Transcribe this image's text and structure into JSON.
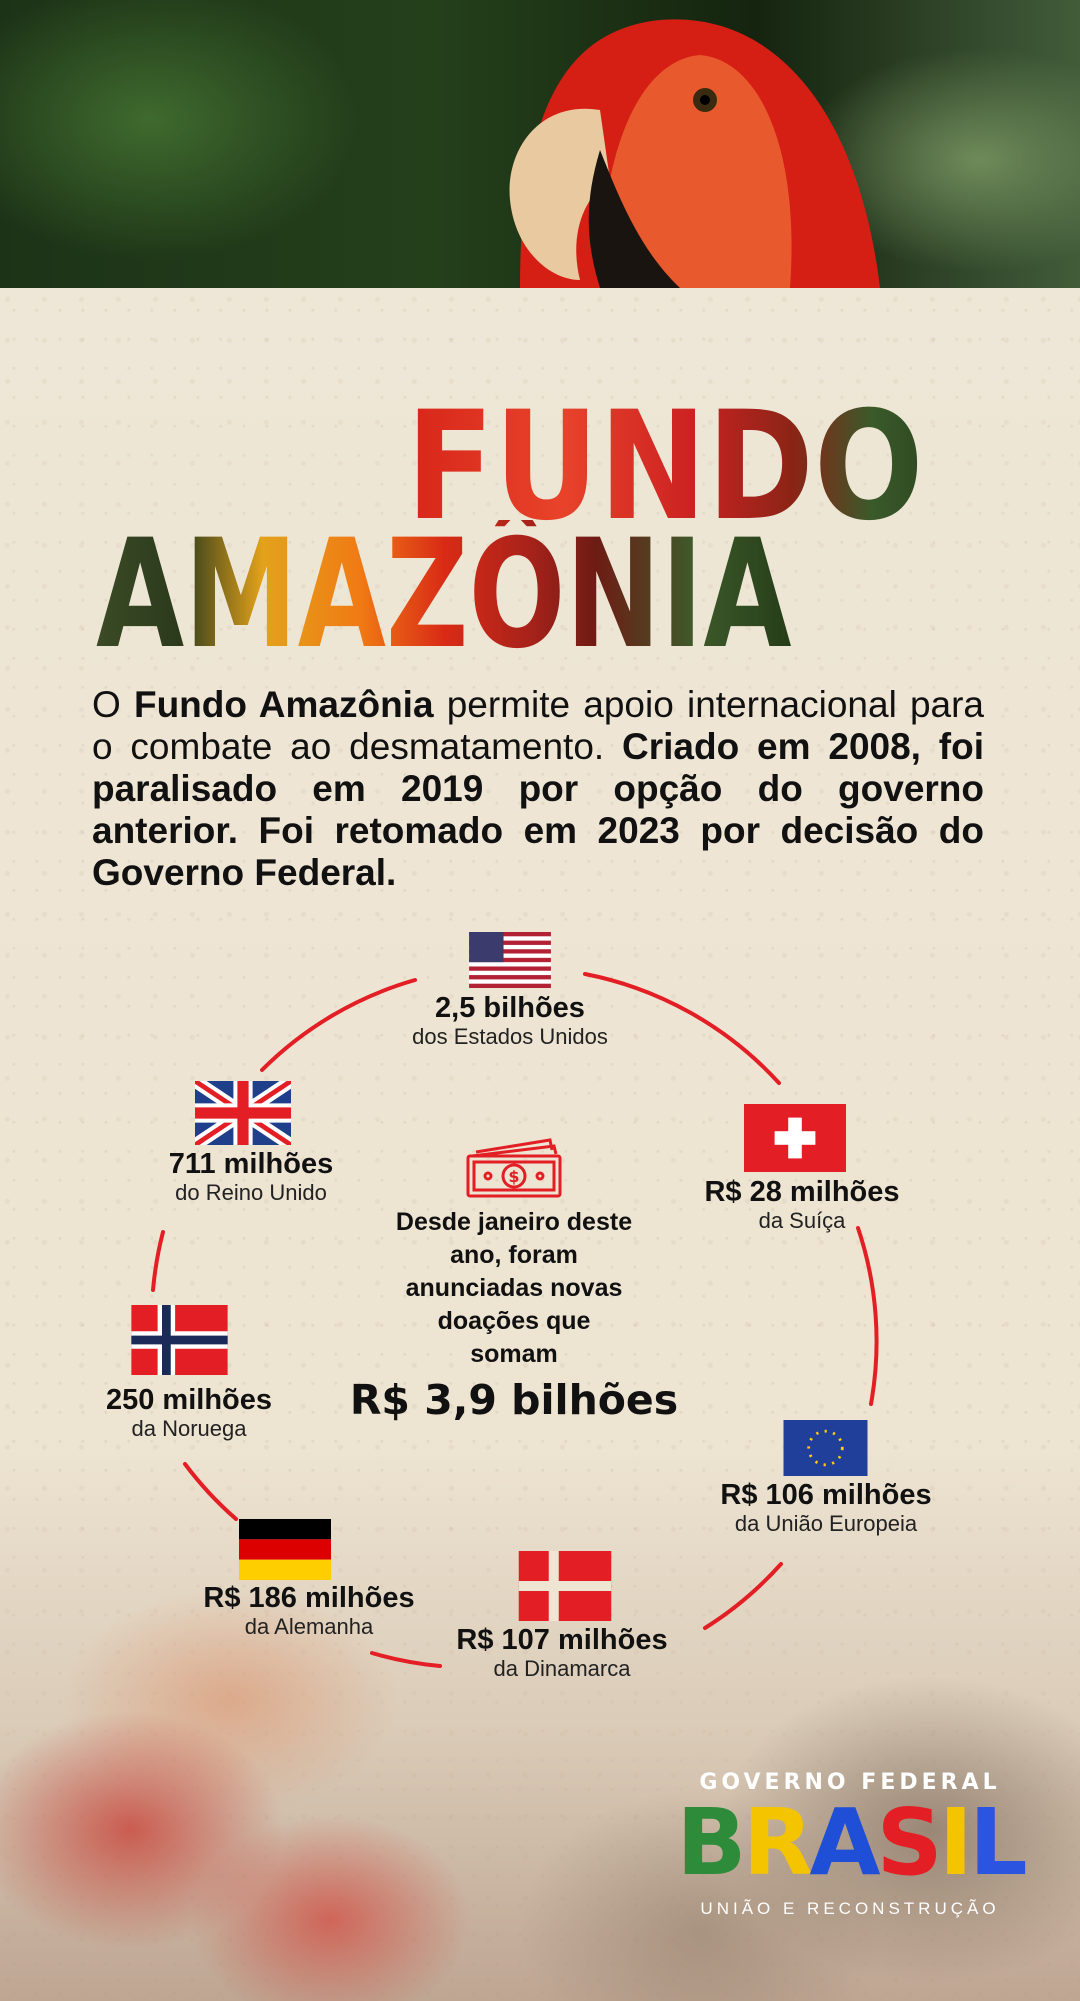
{
  "title": {
    "line1": "FUNDO",
    "line2": "AMAZÔNIA"
  },
  "intro": {
    "p1": "O ",
    "p1_bold": "Fundo Amazônia",
    "p2": " permite apoio internacional para o combate ao desmatamento. ",
    "p3_bold": "Criado em 2008, foi paralisado em 2019 por opção do governo anterior. Foi retomado em 2023 por decisão do Governo Federal."
  },
  "donations": [
    {
      "country": "united-states",
      "amount": "2,5 bilhões",
      "source": "dos Estados Unidos"
    },
    {
      "country": "switzerland",
      "amount": "R$ 28 milhões",
      "source": "da Suíça"
    },
    {
      "country": "european-union",
      "amount": "R$ 106 milhões",
      "source": "da União Europeia"
    },
    {
      "country": "denmark",
      "amount": "R$ 107 milhões",
      "source": "da Dinamarca"
    },
    {
      "country": "germany",
      "amount": "R$ 186 milhões",
      "source": "da Alemanha"
    },
    {
      "country": "norway",
      "amount": "250 milhões",
      "source": "da Noruega"
    },
    {
      "country": "united-kingdom",
      "amount": "711 milhões",
      "source": "do Reino Unido"
    }
  ],
  "center": {
    "icon": "money-bills-icon",
    "lines": [
      "Desde janeiro deste",
      "ano, foram",
      "anunciadas novas",
      "doações que",
      "somam"
    ],
    "total": "R$ 3,9 bilhões"
  },
  "logo": {
    "top": "GOVERNO FEDERAL",
    "word": "BRASIL",
    "bottom": "UNIÃO E RECONSTRUÇÃO"
  },
  "colors": {
    "accent": "#e31e24",
    "background": "#eee5d3"
  }
}
